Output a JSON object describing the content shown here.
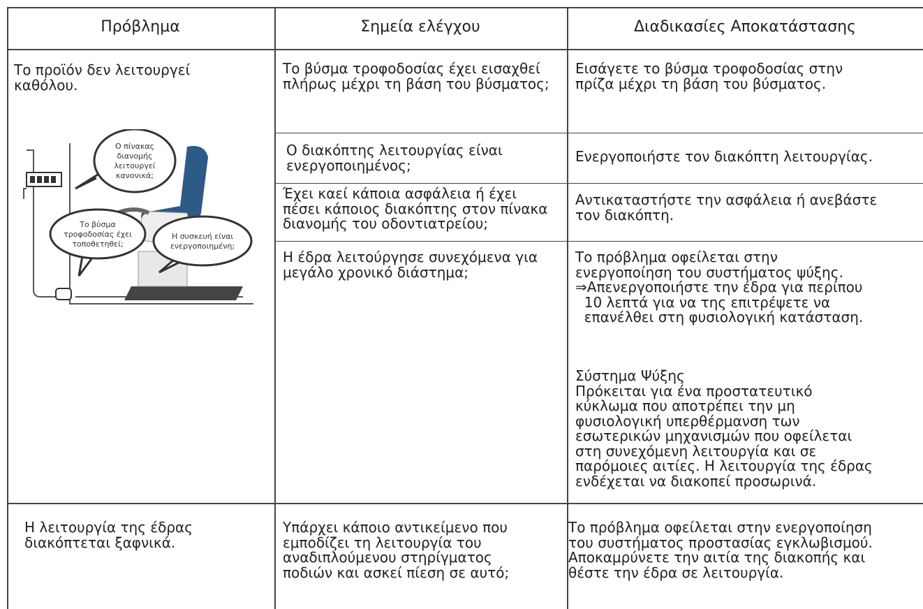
{
  "table": {
    "header": [
      "Πρόβλημα",
      "Σημεία ελέγχου",
      "Διαδικασίες Αποκατάστασης"
    ],
    "rows": [
      {
        "problem": [
          "Το προϊόν δεν λειτουργεί",
          "καθόλου."
        ],
        "illustration": {
          "bubbles": [
            [
              "Ο πίνακας",
              "διανομής",
              "λειτουργεί",
              "κανονικά;"
            ],
            [
              "Το βύσμα",
              "τροφοδοσίας έχει",
              "τοποθετηθεί;"
            ],
            [
              "Η συσκευή είναι",
              "ενεργοποιημένη;"
            ]
          ]
        },
        "checks": [
          {
            "check": [
              "Το βύσμα τροφοδοσίας έχει εισαχθεί",
              "πλήρως μέχρι τη βάση του βύσματος;"
            ],
            "remedy": [
              "Εισάγετε το βύσμα τροφοδοσίας στην",
              "πρίζα μέχρι τη βάση του βύσματος."
            ]
          },
          {
            "check": [
              "Ο διακόπτης λειτουργίας είναι",
              "ενεργοποιημένος;"
            ],
            "remedy": [
              "Ενεργοποιήστε τον διακόπτη λειτουργίας."
            ]
          },
          {
            "check": [
              "Έχει καεί κάποια ασφάλεια ή έχει",
              "πέσει κάποιος διακόπτης στον πίνακα",
              "διανομής του οδοντιατρείου;"
            ],
            "remedy": [
              "Αντικαταστήστε την ασφάλεια ή ανεβάστε",
              "τον διακόπτη."
            ]
          },
          {
            "check": [
              "Η έδρα λειτούργησε συνεχόμενα για",
              "μεγάλο χρονικό διάστημα;"
            ],
            "remedy": [
              "Το πρόβλημα οφείλεται στην",
              "ενεργοποίηση του συστήματος ψύξης.",
              "⇒Απενεργοποιήστε την έδρα για περίπου",
              "  10 λεπτά για να της επιτρέψετε να",
              "  επανέλθει στη φυσιολογική κατάσταση."
            ],
            "note": {
              "title": "Σύστημα Ψύξης",
              "lines": [
                "Πρόκειται για ένα προστατευτικό",
                "κύκλωμα που αποτρέπει την μη",
                "φυσιολογική υπερθέρμανση των",
                "εσωτερικών μηχανισμών που οφείλεται",
                "στη συνεχόμενη λειτουργία και σε",
                "παρόμοιες αιτίες. Η λειτουργία της έδρας",
                "ενδέχεται να διακοπεί προσωρινά."
              ]
            }
          }
        ]
      },
      {
        "problem": [
          "Η λειτουργία της έδρας",
          "διακόπτεται ξαφνικά."
        ],
        "checks": [
          {
            "check": [
              "Υπάρχει κάποιο αντικείμενο που",
              "εμποδίζει τη λειτουργία του",
              "αναδιπλούμενου στηρίγματος",
              "ποδιών και ασκεί πίεση σε αυτό;"
            ],
            "remedy": [
              "Το πρόβλημα οφείλεται στην ενεργοποίηση",
              "του συστήματος προστασίας εγκλωβισμού.",
              "Αποκαμρύνετε την αιτία της διακοπής και",
              "θέστε την έδρα σε λειτουργία."
            ]
          }
        ]
      }
    ]
  }
}
